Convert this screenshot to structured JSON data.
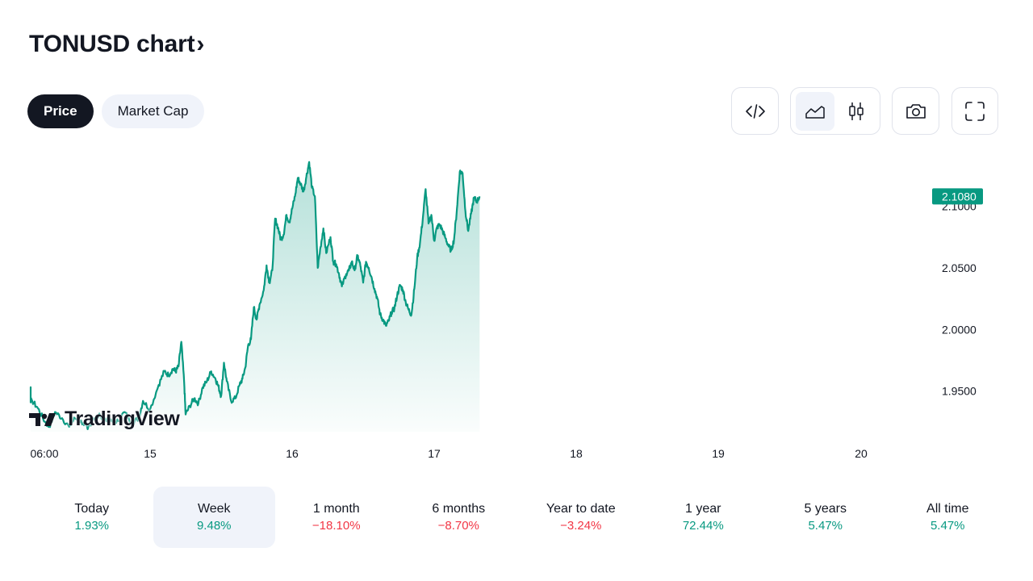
{
  "header": {
    "title": "TONUSD chart",
    "chevron": "›"
  },
  "tabs": [
    {
      "label": "Price",
      "active": true
    },
    {
      "label": "Market Cap",
      "active": false
    }
  ],
  "toolbar": {
    "embed_icon": "code-icon",
    "area_icon": "area-chart-icon",
    "candle_icon": "candlestick-icon",
    "snapshot_icon": "camera-icon",
    "fullscreen_icon": "fullscreen-icon",
    "selected_style": "area"
  },
  "logo": {
    "text": "TradingView"
  },
  "colors": {
    "line": "#089981",
    "positive": "#089981",
    "negative": "#f23645",
    "text": "#131722"
  },
  "chart_data": {
    "type": "area",
    "x_tick_labels": [
      "06:00",
      "15",
      "16",
      "17",
      "18",
      "19",
      "20"
    ],
    "y_tick_labels": [
      "2.1000",
      "2.0500",
      "2.0000",
      "1.9500"
    ],
    "ylim": [
      1.917,
      2.143
    ],
    "last_price_label": "2.1080",
    "last_price": 2.108,
    "grid": false,
    "keypoints": [
      [
        0,
        1.942
      ],
      [
        0.05,
        1.945
      ],
      [
        0.09,
        1.953
      ],
      [
        0.11,
        1.944
      ],
      [
        0.17,
        1.942
      ],
      [
        0.21,
        1.936
      ],
      [
        0.26,
        1.925
      ],
      [
        0.29,
        1.921
      ],
      [
        0.33,
        1.933
      ],
      [
        0.38,
        1.928
      ],
      [
        0.43,
        1.921
      ],
      [
        0.47,
        1.928
      ],
      [
        0.53,
        1.924
      ],
      [
        0.56,
        1.919
      ],
      [
        0.6,
        1.928
      ],
      [
        0.65,
        1.93
      ],
      [
        0.71,
        1.926
      ],
      [
        0.76,
        1.924
      ],
      [
        0.82,
        1.933
      ],
      [
        0.87,
        1.924
      ],
      [
        0.92,
        1.928
      ],
      [
        0.95,
        1.942
      ],
      [
        1.0,
        1.935
      ],
      [
        1.06,
        1.955
      ],
      [
        1.1,
        1.966
      ],
      [
        1.13,
        1.963
      ],
      [
        1.16,
        1.968
      ],
      [
        1.18,
        1.966
      ],
      [
        1.2,
        1.97
      ],
      [
        1.22,
        1.99
      ],
      [
        1.24,
        1.957
      ],
      [
        1.25,
        1.931
      ],
      [
        1.28,
        1.938
      ],
      [
        1.31,
        1.944
      ],
      [
        1.34,
        1.94
      ],
      [
        1.37,
        1.953
      ],
      [
        1.4,
        1.958
      ],
      [
        1.43,
        1.966
      ],
      [
        1.46,
        1.96
      ],
      [
        1.48,
        1.954
      ],
      [
        1.5,
        1.946
      ],
      [
        1.52,
        1.973
      ],
      [
        1.54,
        1.958
      ],
      [
        1.57,
        1.942
      ],
      [
        1.6,
        1.944
      ],
      [
        1.63,
        1.955
      ],
      [
        1.65,
        1.96
      ],
      [
        1.67,
        1.969
      ],
      [
        1.69,
        1.987
      ],
      [
        1.71,
        1.992
      ],
      [
        1.73,
        2.018
      ],
      [
        1.75,
        2.008
      ],
      [
        1.77,
        2.02
      ],
      [
        1.8,
        2.032
      ],
      [
        1.82,
        2.052
      ],
      [
        1.84,
        2.038
      ],
      [
        1.86,
        2.048
      ],
      [
        1.88,
        2.09
      ],
      [
        1.9,
        2.083
      ],
      [
        1.92,
        2.073
      ],
      [
        1.94,
        2.077
      ],
      [
        1.96,
        2.093
      ],
      [
        1.98,
        2.087
      ],
      [
        2.0,
        2.098
      ],
      [
        2.02,
        2.108
      ],
      [
        2.04,
        2.123
      ],
      [
        2.06,
        2.118
      ],
      [
        2.08,
        2.112
      ],
      [
        2.1,
        2.124
      ],
      [
        2.12,
        2.136
      ],
      [
        2.14,
        2.115
      ],
      [
        2.16,
        2.108
      ],
      [
        2.18,
        2.05
      ],
      [
        2.2,
        2.067
      ],
      [
        2.22,
        2.082
      ],
      [
        2.24,
        2.062
      ],
      [
        2.27,
        2.075
      ],
      [
        2.29,
        2.055
      ],
      [
        2.31,
        2.053
      ],
      [
        2.33,
        2.045
      ],
      [
        2.35,
        2.035
      ],
      [
        2.38,
        2.045
      ],
      [
        2.4,
        2.048
      ],
      [
        2.42,
        2.055
      ],
      [
        2.44,
        2.048
      ],
      [
        2.46,
        2.06
      ],
      [
        2.48,
        2.052
      ],
      [
        2.5,
        2.038
      ],
      [
        2.52,
        2.055
      ],
      [
        2.54,
        2.05
      ],
      [
        2.56,
        2.042
      ],
      [
        2.58,
        2.033
      ],
      [
        2.6,
        2.025
      ],
      [
        2.62,
        2.012
      ],
      [
        2.64,
        2.008
      ],
      [
        2.66,
        2.003
      ],
      [
        2.68,
        2.007
      ],
      [
        2.7,
        2.014
      ],
      [
        2.72,
        2.017
      ],
      [
        2.74,
        2.028
      ],
      [
        2.76,
        2.036
      ],
      [
        2.78,
        2.032
      ],
      [
        2.8,
        2.022
      ],
      [
        2.82,
        2.016
      ],
      [
        2.84,
        2.012
      ],
      [
        2.86,
        2.033
      ],
      [
        2.88,
        2.058
      ],
      [
        2.9,
        2.07
      ],
      [
        2.92,
        2.09
      ],
      [
        2.94,
        2.114
      ],
      [
        2.96,
        2.086
      ],
      [
        2.98,
        2.093
      ],
      [
        3.0,
        2.072
      ],
      [
        3.02,
        2.083
      ],
      [
        3.04,
        2.085
      ],
      [
        3.06,
        2.08
      ],
      [
        3.08,
        2.074
      ],
      [
        3.1,
        2.068
      ],
      [
        3.12,
        2.064
      ],
      [
        3.14,
        2.073
      ],
      [
        3.16,
        2.098
      ],
      [
        3.18,
        2.128
      ],
      [
        3.2,
        2.127
      ],
      [
        3.22,
        2.096
      ],
      [
        3.24,
        2.08
      ],
      [
        3.26,
        2.094
      ],
      [
        3.28,
        2.107
      ],
      [
        3.3,
        2.104
      ],
      [
        3.32,
        2.108
      ]
    ]
  },
  "ranges": [
    {
      "label": "Today",
      "value": "1.93%",
      "trend": "pos",
      "selected": false
    },
    {
      "label": "Week",
      "value": "9.48%",
      "trend": "pos",
      "selected": true
    },
    {
      "label": "1 month",
      "value": "−18.10%",
      "trend": "neg",
      "selected": false
    },
    {
      "label": "6 months",
      "value": "−8.70%",
      "trend": "neg",
      "selected": false
    },
    {
      "label": "Year to date",
      "value": "−3.24%",
      "trend": "neg",
      "selected": false
    },
    {
      "label": "1 year",
      "value": "72.44%",
      "trend": "pos",
      "selected": false
    },
    {
      "label": "5 years",
      "value": "5.47%",
      "trend": "pos",
      "selected": false
    },
    {
      "label": "All time",
      "value": "5.47%",
      "trend": "pos",
      "selected": false
    }
  ]
}
